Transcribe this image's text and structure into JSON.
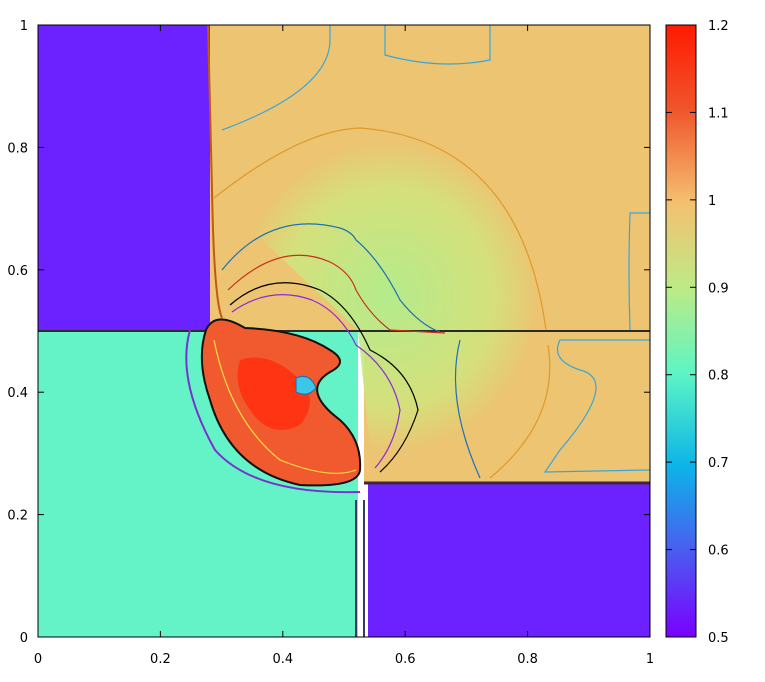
{
  "chart_data": {
    "type": "heatmap",
    "title": "",
    "xlabel": "",
    "ylabel": "",
    "xlim": [
      0,
      1
    ],
    "ylim": [
      0,
      1
    ],
    "x_ticks": [
      "0",
      "0.2",
      "0.4",
      "0.6",
      "0.8",
      "1"
    ],
    "x_tick_values": [
      0,
      0.2,
      0.4,
      0.6,
      0.8,
      1
    ],
    "y_ticks": [
      "0",
      "0.2",
      "0.4",
      "0.6",
      "0.8",
      "1"
    ],
    "y_tick_values": [
      0,
      0.2,
      0.4,
      0.6,
      0.8,
      1
    ],
    "colorbar": {
      "range": [
        0.5,
        1.2
      ],
      "ticks": [
        "0.5",
        "0.6",
        "0.7",
        "0.8",
        "0.9",
        "1",
        "1.1",
        "1.2"
      ],
      "tick_values": [
        0.5,
        0.6,
        0.7,
        0.8,
        0.9,
        1.0,
        1.1,
        1.2
      ],
      "colormap": "rainbow",
      "stops": [
        "#7a00ff",
        "#4a5cf0",
        "#0cb4e8",
        "#5cf5c4",
        "#bdeb86",
        "#f4c070",
        "#f0562c",
        "#ff1a00"
      ]
    },
    "regions": [
      {
        "name": "upper-left state",
        "x": [
          0,
          0.28
        ],
        "y": [
          0.5,
          1
        ],
        "value": 0.5
      },
      {
        "name": "upper-right state",
        "x": [
          0.28,
          1
        ],
        "y": [
          0.5,
          1
        ],
        "value": 1.0
      },
      {
        "name": "lower-left state",
        "x": [
          0,
          0.52
        ],
        "y": [
          0,
          0.5
        ],
        "value": 0.8
      },
      {
        "name": "lower-right state",
        "x": [
          0.53,
          1
        ],
        "y": [
          0,
          0.25
        ],
        "value": 0.5
      },
      {
        "name": "right middle state",
        "x": [
          0.53,
          1
        ],
        "y": [
          0.25,
          0.5
        ],
        "value": 1.0
      }
    ],
    "features": [
      {
        "name": "high-density vortex",
        "center": [
          0.4,
          0.38
        ],
        "value": 1.15
      },
      {
        "name": "circular wave front",
        "center": [
          0.52,
          0.5
        ],
        "radius": 0.4,
        "value": 0.95
      }
    ],
    "grid": false,
    "legend": "colorbar-right"
  }
}
